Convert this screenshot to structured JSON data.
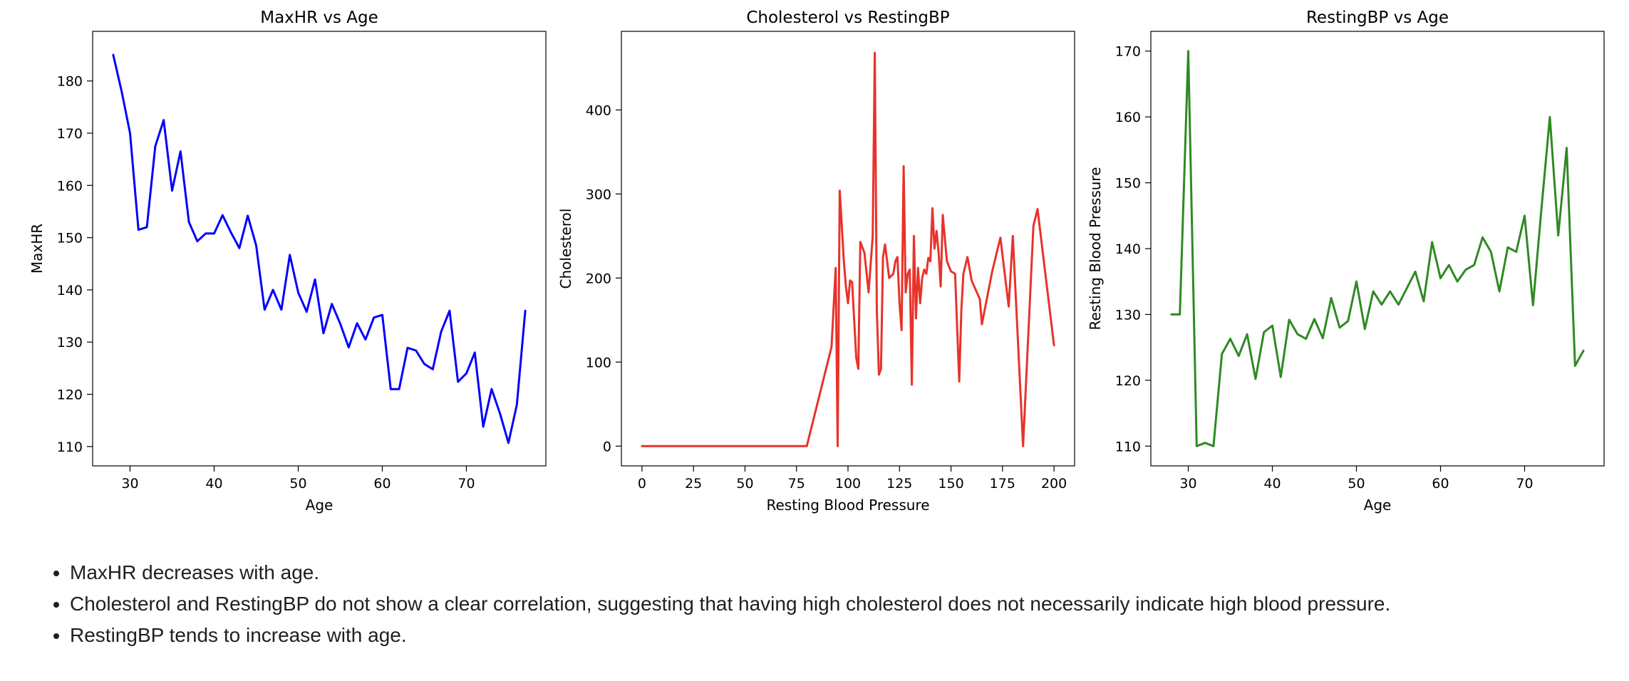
{
  "chart_data": [
    {
      "type": "line",
      "title": "MaxHR vs Age",
      "xlabel": "Age",
      "ylabel": "MaxHR",
      "color": "#0000ff",
      "xlim": [
        25.55,
        79.45
      ],
      "ylim": [
        106.3,
        189.5
      ],
      "xticks": [
        30,
        40,
        50,
        60,
        70
      ],
      "yticks": [
        110,
        120,
        130,
        140,
        150,
        160,
        170,
        180
      ],
      "x": [
        28,
        29,
        30,
        31,
        32,
        33,
        34,
        35,
        36,
        37,
        38,
        39,
        40,
        41,
        42,
        43,
        44,
        45,
        46,
        47,
        48,
        49,
        50,
        51,
        52,
        53,
        54,
        55,
        56,
        57,
        58,
        59,
        60,
        61,
        62,
        63,
        64,
        65,
        66,
        67,
        68,
        69,
        70,
        71,
        72,
        73,
        74,
        75,
        76,
        77
      ],
      "y": [
        185,
        178,
        170,
        151.5,
        152,
        167.5,
        172.5,
        159,
        166.5,
        153,
        149.3,
        150.8,
        150.8,
        154.3,
        151,
        148,
        154.2,
        148.5,
        136.2,
        140,
        136.2,
        146.7,
        139.5,
        135.8,
        142,
        131.7,
        137.3,
        133.5,
        129,
        133.6,
        130.5,
        134.7,
        135.2,
        121,
        121,
        128.9,
        128.4,
        125.8,
        124.8,
        132,
        136,
        122.4,
        124,
        128,
        113.8,
        121,
        116.3,
        110.7,
        118,
        136
      ]
    },
    {
      "type": "line",
      "title": "Cholesterol vs RestingBP",
      "xlabel": "Resting Blood Pressure",
      "ylabel": "Cholesterol",
      "color": "#e8322a",
      "xlim": [
        -10,
        210
      ],
      "ylim": [
        -23.5,
        493.5
      ],
      "xticks": [
        0,
        25,
        50,
        75,
        100,
        125,
        150,
        175,
        200
      ],
      "yticks": [
        0,
        100,
        200,
        300,
        400
      ],
      "x": [
        0,
        80,
        92,
        94,
        95,
        96,
        98,
        99,
        100,
        101,
        102,
        104,
        105,
        106,
        108,
        110,
        112,
        113,
        114,
        115,
        116,
        117,
        118,
        120,
        122,
        123,
        124,
        125,
        126,
        127,
        128,
        129,
        130,
        131,
        132,
        133,
        134,
        135,
        136,
        137,
        138,
        139,
        140,
        141,
        142,
        143,
        144,
        145,
        146,
        148,
        150,
        152,
        154,
        155,
        156,
        158,
        160,
        164,
        165,
        170,
        172,
        174,
        178,
        180,
        185,
        190,
        192,
        200
      ],
      "y": [
        0,
        0,
        118,
        212,
        0,
        304,
        220,
        190,
        170,
        197,
        195,
        105,
        92,
        243,
        230,
        183,
        250,
        468,
        160,
        85,
        92,
        225,
        240,
        200,
        205,
        220,
        225,
        170,
        138,
        333,
        183,
        205,
        210,
        73,
        250,
        152,
        212,
        170,
        200,
        210,
        205,
        224,
        220,
        283,
        235,
        256,
        230,
        190,
        275,
        220,
        208,
        205,
        77,
        160,
        205,
        225,
        197,
        175,
        145,
        208,
        228,
        248,
        166,
        250,
        0,
        262,
        282,
        120
      ]
    },
    {
      "type": "line",
      "title": "RestingBP vs Age",
      "xlabel": "Age",
      "ylabel": "Resting Blood Pressure",
      "color": "#2f8a23",
      "xlim": [
        25.55,
        79.45
      ],
      "ylim": [
        107.0,
        173.0
      ],
      "xticks": [
        30,
        40,
        50,
        60,
        70
      ],
      "yticks": [
        110,
        120,
        130,
        140,
        150,
        160,
        170
      ],
      "x": [
        28,
        29,
        30,
        31,
        32,
        33,
        34,
        35,
        36,
        37,
        38,
        39,
        40,
        41,
        42,
        43,
        44,
        45,
        46,
        47,
        48,
        49,
        50,
        51,
        52,
        53,
        54,
        55,
        56,
        57,
        58,
        59,
        60,
        61,
        62,
        63,
        64,
        65,
        66,
        67,
        68,
        69,
        70,
        71,
        72,
        73,
        74,
        75,
        76,
        77
      ],
      "y": [
        130,
        130,
        170,
        110,
        110.5,
        110,
        124,
        126.3,
        123.7,
        127,
        120.2,
        127.3,
        128.3,
        120.5,
        129.2,
        127,
        126.3,
        129.3,
        126.4,
        132.5,
        128,
        129,
        135,
        127.8,
        133.5,
        131.5,
        133.5,
        131.5,
        134,
        136.5,
        132,
        141,
        135.5,
        137.5,
        135,
        136.8,
        137.5,
        141.7,
        139.5,
        133.5,
        140.2,
        139.5,
        145,
        131.4,
        146,
        160,
        142,
        155.3,
        122.2,
        124.5
      ]
    }
  ],
  "notes": [
    "MaxHR decreases with age.",
    "Cholesterol and RestingBP do not show a clear correlation, suggesting that having high cholesterol does not necessarily indicate high blood pressure.",
    "RestingBP tends to increase with age."
  ]
}
